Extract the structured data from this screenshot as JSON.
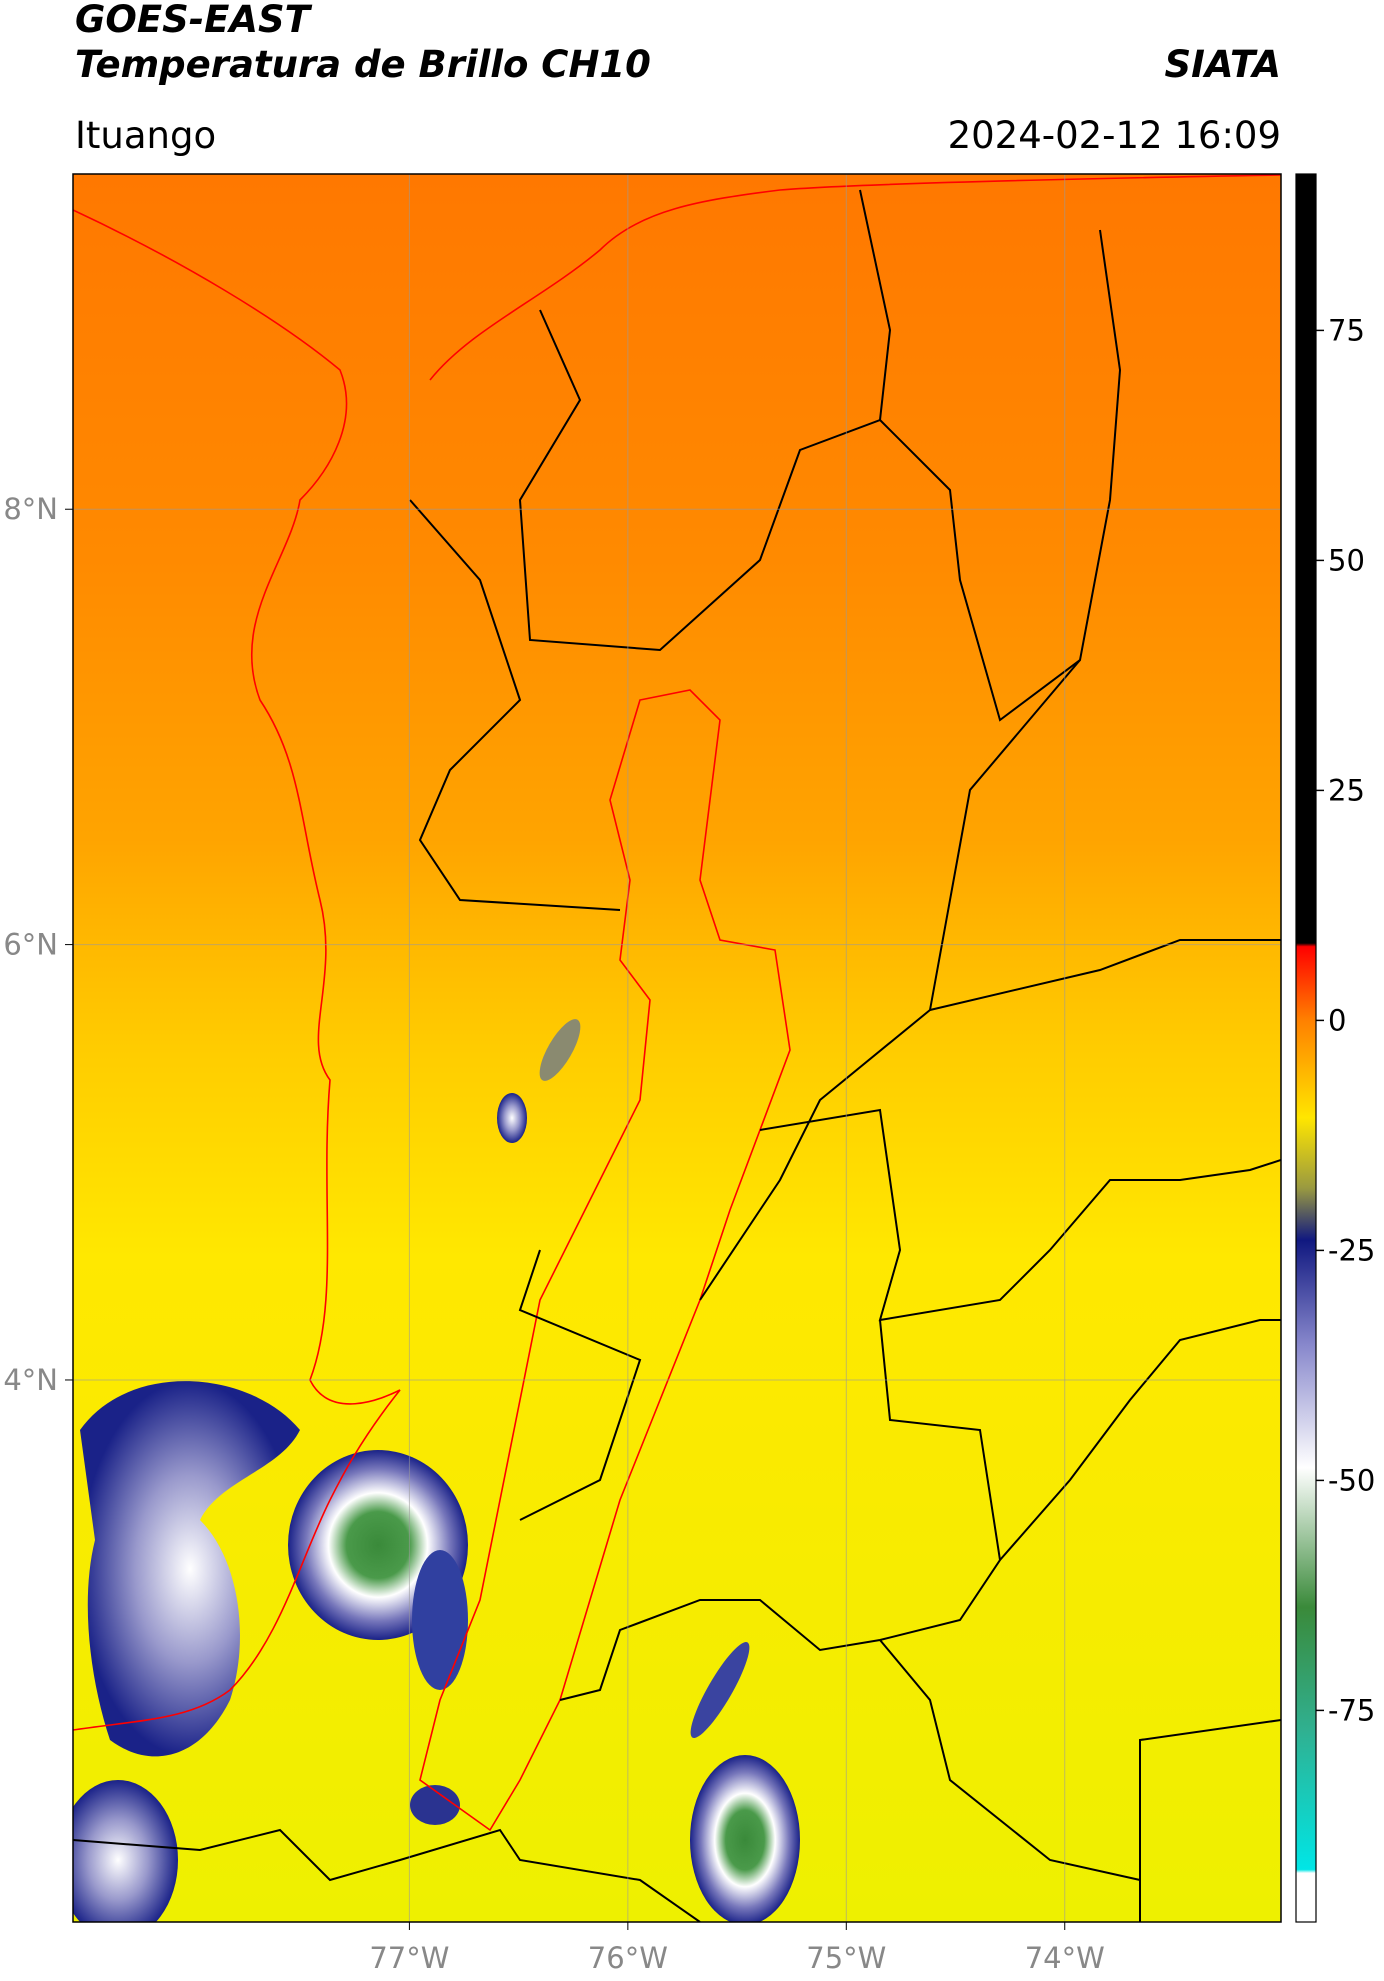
{
  "header": {
    "title": "GOES-EAST",
    "subtitle": "Temperatura de Brillo CH10",
    "source": "SIATA",
    "location": "Ituango",
    "datetime": "2024-02-12 16:09"
  },
  "map": {
    "type": "map",
    "xlim": [
      -78.54,
      -73.01
    ],
    "ylim": [
      1.51,
      9.54
    ],
    "xticks": [
      {
        "value": -77,
        "label": "77°W"
      },
      {
        "value": -76,
        "label": "76°W"
      },
      {
        "value": -75,
        "label": "75°W"
      },
      {
        "value": -74,
        "label": "74°W"
      }
    ],
    "yticks": [
      {
        "value": 8,
        "label": "8°N"
      },
      {
        "value": 6,
        "label": "6°N"
      },
      {
        "value": 4,
        "label": "4°N"
      }
    ],
    "grid": true,
    "colorbar": {
      "lim": [
        -98,
        92
      ],
      "ticks": [
        75,
        50,
        25,
        0,
        -25,
        -50,
        -75
      ]
    }
  }
}
